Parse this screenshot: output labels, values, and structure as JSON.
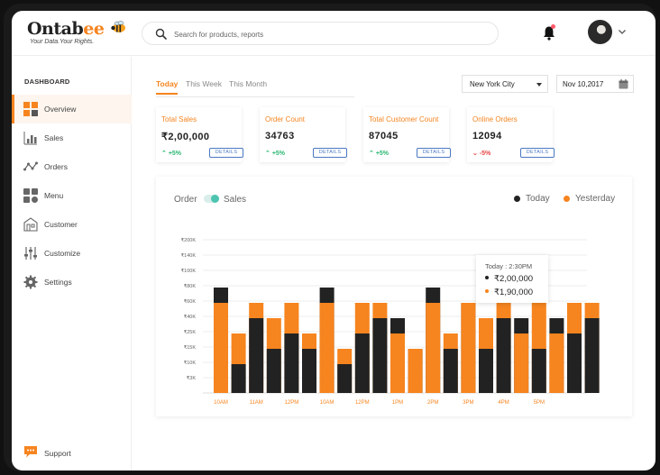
{
  "brand": {
    "name": "Ontabee",
    "name_main": "Ontab",
    "name_accent": "ee",
    "tagline": "Your Data.Your Rights."
  },
  "search": {
    "placeholder": "Search for products, reports"
  },
  "sidebar": {
    "section_title": "DASHBOARD",
    "items": [
      {
        "label": "Overview",
        "icon": "overview-icon",
        "active": true
      },
      {
        "label": "Sales",
        "icon": "bar-chart-icon"
      },
      {
        "label": "Orders",
        "icon": "line-nodes-icon"
      },
      {
        "label": "Menu",
        "icon": "grid-icon"
      },
      {
        "label": "Customer",
        "icon": "building-icon"
      },
      {
        "label": "Customize",
        "icon": "sliders-icon"
      },
      {
        "label": "Settings",
        "icon": "gear-icon"
      }
    ],
    "support_label": "Support"
  },
  "tabs": [
    {
      "label": "Today",
      "active": true
    },
    {
      "label": "This Week"
    },
    {
      "label": "This Month"
    }
  ],
  "filters": {
    "city": "New York City",
    "date": "Nov 10,2017"
  },
  "cards": [
    {
      "title": "Total Sales",
      "value": "₹2,00,000",
      "delta": "+5%",
      "trend": "up",
      "button": "DETAILS"
    },
    {
      "title": "Order Count",
      "value": "34763",
      "delta": "+5%",
      "trend": "up",
      "button": "DETAILS"
    },
    {
      "title": "Total Customer Count",
      "value": "87045",
      "delta": "+5%",
      "trend": "up",
      "button": "DETAILS"
    },
    {
      "title": "Online Orders",
      "value": "12094",
      "delta": "-5%",
      "trend": "down",
      "button": "DETAILS"
    }
  ],
  "chart_toggle": {
    "left": "Order",
    "right": "Sales"
  },
  "colors": {
    "accent": "#f6841f",
    "today": "#222222",
    "yesterday": "#f6841f",
    "up": "#2bb673",
    "down": "#e84545"
  },
  "tooltip": {
    "title": "Today : 2:30PM",
    "today_value": "₹2,00,000",
    "yesterday_value": "₹1,90,000"
  },
  "chart_data": {
    "type": "bar",
    "stacked_overlay": true,
    "legend": [
      "Today",
      "Yesterday"
    ],
    "legend_position": "top-right",
    "y_ticks": [
      "₹3K",
      "₹10K",
      "₹15K",
      "₹25K",
      "₹40K",
      "₹60K",
      "₹80K",
      "₹100K",
      "₹140K",
      "₹200K"
    ],
    "x_ticks": [
      "10AM",
      "11AM",
      "12PM",
      "10AM",
      "12PM",
      "1PM",
      "2PM",
      "3PM",
      "4PM",
      "5PM"
    ],
    "series": [
      {
        "name": "Today",
        "level_index": [
          6,
          1,
          4,
          2,
          3,
          2,
          6,
          1,
          3,
          4,
          4,
          2,
          6,
          2,
          5,
          2,
          4,
          4,
          2,
          4,
          3,
          4
        ]
      },
      {
        "name": "Yesterday",
        "level_index": [
          5,
          3,
          5,
          4,
          5,
          3,
          5,
          2,
          5,
          5,
          3,
          2,
          5,
          3,
          5,
          4,
          5,
          3,
          5,
          3,
          5,
          5
        ]
      }
    ]
  }
}
